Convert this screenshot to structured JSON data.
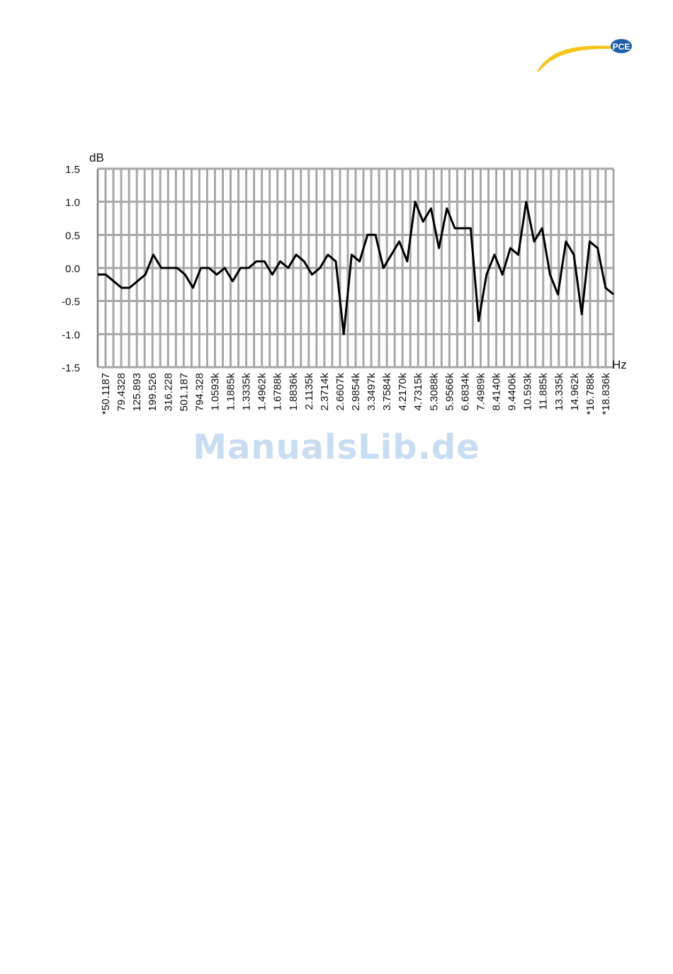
{
  "logo": {
    "text": "PCE",
    "colors": {
      "swoosh": "#f5c518",
      "badge": "#1f5fa8"
    }
  },
  "watermark": "ManualsLib.de",
  "chart_data": {
    "type": "line",
    "ylabel": "dB",
    "xlabel": "Hz",
    "ylim": [
      -1.5,
      1.5
    ],
    "yticks": [
      "1.5",
      "1.0",
      "0.5",
      "0.0",
      "-0.5",
      "-1.0",
      "-1.5"
    ],
    "grid": true,
    "line_color": "#000000",
    "x_labels": [
      "*50.1187",
      "79.4328",
      "125.893",
      "199.526",
      "316.228",
      "501.187",
      "794.328",
      "1.0593k",
      "1.1885k",
      "1.3335k",
      "1.4962k",
      "1.6788k",
      "1.8836k",
      "2.1135k",
      "2.3714k",
      "2.6607k",
      "2.9854k",
      "3.3497k",
      "3.7584k",
      "4.2170k",
      "4.7315k",
      "5.3088k",
      "5.9566k",
      "6.6834k",
      "7.4989k",
      "8.4140k",
      "9.4406k",
      "10.593k",
      "11.885k",
      "13.335k",
      "14.962k",
      "*16.788k",
      "*18.836k"
    ],
    "series": [
      {
        "values": [
          -0.1,
          -0.1,
          -0.2,
          -0.3,
          -0.3,
          -0.2,
          -0.1,
          0.2,
          0.0,
          0.0,
          0.0,
          -0.1,
          -0.3,
          0.0,
          0.0,
          -0.1,
          0.0,
          -0.2,
          0.0,
          0.0,
          0.1,
          0.1,
          -0.1,
          0.1,
          0.0,
          0.2,
          0.1,
          -0.1,
          0.0,
          0.2,
          0.1,
          -1.0,
          0.2,
          0.1,
          0.5,
          0.5,
          0.0,
          0.2,
          0.4,
          0.1,
          1.0,
          0.7,
          0.9,
          0.3,
          0.9,
          0.6,
          0.6,
          0.6,
          -0.8,
          -0.1,
          0.2,
          -0.1,
          0.3,
          0.2,
          1.0,
          0.4,
          0.6,
          -0.1,
          -0.4,
          0.4,
          0.2,
          -0.7,
          0.4,
          0.3,
          -0.3,
          -0.4
        ]
      }
    ]
  }
}
